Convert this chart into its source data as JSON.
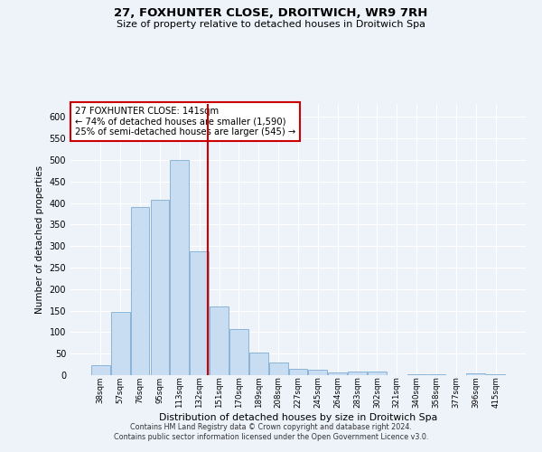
{
  "title": "27, FOXHUNTER CLOSE, DROITWICH, WR9 7RH",
  "subtitle": "Size of property relative to detached houses in Droitwich Spa",
  "xlabel": "Distribution of detached houses by size in Droitwich Spa",
  "ylabel": "Number of detached properties",
  "categories": [
    "38sqm",
    "57sqm",
    "76sqm",
    "95sqm",
    "113sqm",
    "132sqm",
    "151sqm",
    "170sqm",
    "189sqm",
    "208sqm",
    "227sqm",
    "245sqm",
    "264sqm",
    "283sqm",
    "302sqm",
    "321sqm",
    "340sqm",
    "358sqm",
    "377sqm",
    "396sqm",
    "415sqm"
  ],
  "values": [
    23,
    148,
    390,
    408,
    500,
    287,
    160,
    108,
    53,
    30,
    15,
    12,
    6,
    9,
    9,
    0,
    3,
    3,
    0,
    4,
    3
  ],
  "bar_color": "#c9ddf2",
  "bar_edge_color": "#8ab4d8",
  "vline_x_index": 5,
  "vline_color": "#cc0000",
  "annotation_text": "27 FOXHUNTER CLOSE: 141sqm\n← 74% of detached houses are smaller (1,590)\n25% of semi-detached houses are larger (545) →",
  "annotation_box_color": "#ffffff",
  "annotation_box_edge": "#cc0000",
  "footer_line1": "Contains HM Land Registry data © Crown copyright and database right 2024.",
  "footer_line2": "Contains public sector information licensed under the Open Government Licence v3.0.",
  "background_color": "#eef2f9",
  "ylim": [
    0,
    630
  ],
  "yticks": [
    0,
    50,
    100,
    150,
    200,
    250,
    300,
    350,
    400,
    450,
    500,
    550,
    600
  ]
}
